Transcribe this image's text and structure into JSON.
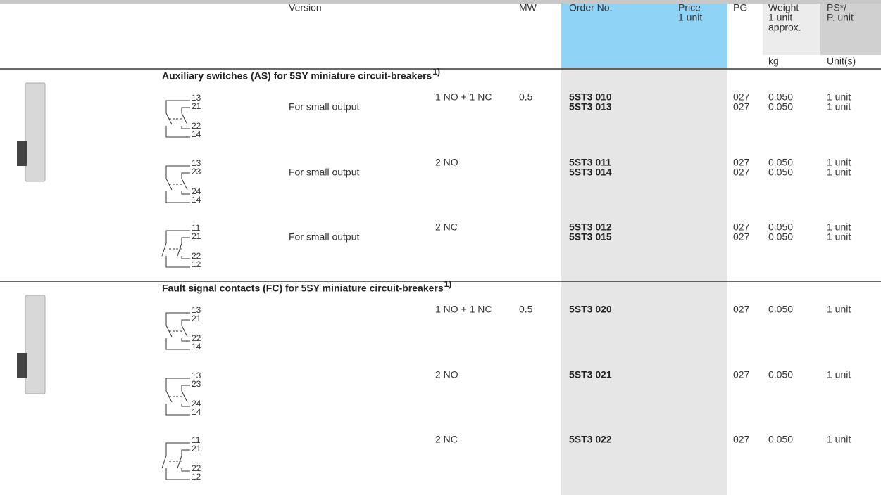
{
  "header": {
    "version": "Version",
    "mw": "MW",
    "order_no": "Order No.",
    "price": [
      "Price",
      "1 unit"
    ],
    "pg": "PG",
    "weight": [
      "Weight",
      "1 unit",
      "approx."
    ],
    "ps": [
      "PS*/",
      "P. unit"
    ],
    "weight_unit": "kg",
    "ps_unit": "Unit(s)"
  },
  "sections": [
    {
      "title": "Auxiliary switches (AS) for 5SY miniature circuit-breakers",
      "note": "1)",
      "groups": [
        {
          "terminals": [
            "13",
            "21",
            "22",
            "14"
          ],
          "contacts": "1 NO + 1 NC",
          "mw": "0.5",
          "rows": [
            {
              "order_no": "5ST3 010",
              "pg": "027",
              "weight": "0.050",
              "ps": "1 unit"
            },
            {
              "version": "For small output",
              "order_no": "5ST3 013",
              "pg": "027",
              "weight": "0.050",
              "ps": "1 unit"
            }
          ]
        },
        {
          "terminals": [
            "13",
            "23",
            "24",
            "14"
          ],
          "contacts": "2 NO",
          "rows": [
            {
              "order_no": "5ST3 011",
              "pg": "027",
              "weight": "0.050",
              "ps": "1 unit"
            },
            {
              "version": "For small output",
              "order_no": "5ST3 014",
              "pg": "027",
              "weight": "0.050",
              "ps": "1 unit"
            }
          ]
        },
        {
          "terminals": [
            "11",
            "21",
            "22",
            "12"
          ],
          "contacts": "2 NC",
          "rows": [
            {
              "order_no": "5ST3 012",
              "pg": "027",
              "weight": "0.050",
              "ps": "1 unit"
            },
            {
              "version": "For small output",
              "order_no": "5ST3 015",
              "pg": "027",
              "weight": "0.050",
              "ps": "1 unit"
            }
          ]
        }
      ]
    },
    {
      "title": "Fault signal contacts (FC) for 5SY miniature circuit-breakers",
      "note": "1)",
      "groups": [
        {
          "terminals": [
            "13",
            "21",
            "22",
            "14"
          ],
          "contacts": "1 NO + 1 NC",
          "mw": "0.5",
          "rows": [
            {
              "order_no": "5ST3 020",
              "pg": "027",
              "weight": "0.050",
              "ps": "1 unit"
            }
          ]
        },
        {
          "terminals": [
            "13",
            "23",
            "24",
            "14"
          ],
          "contacts": "2 NO",
          "rows": [
            {
              "order_no": "5ST3 021",
              "pg": "027",
              "weight": "0.050",
              "ps": "1 unit"
            }
          ]
        },
        {
          "terminals": [
            "11",
            "21",
            "22",
            "12"
          ],
          "contacts": "2 NC",
          "rows": [
            {
              "order_no": "5ST3 022",
              "pg": "027",
              "weight": "0.050",
              "ps": "1 unit"
            }
          ]
        }
      ]
    }
  ]
}
